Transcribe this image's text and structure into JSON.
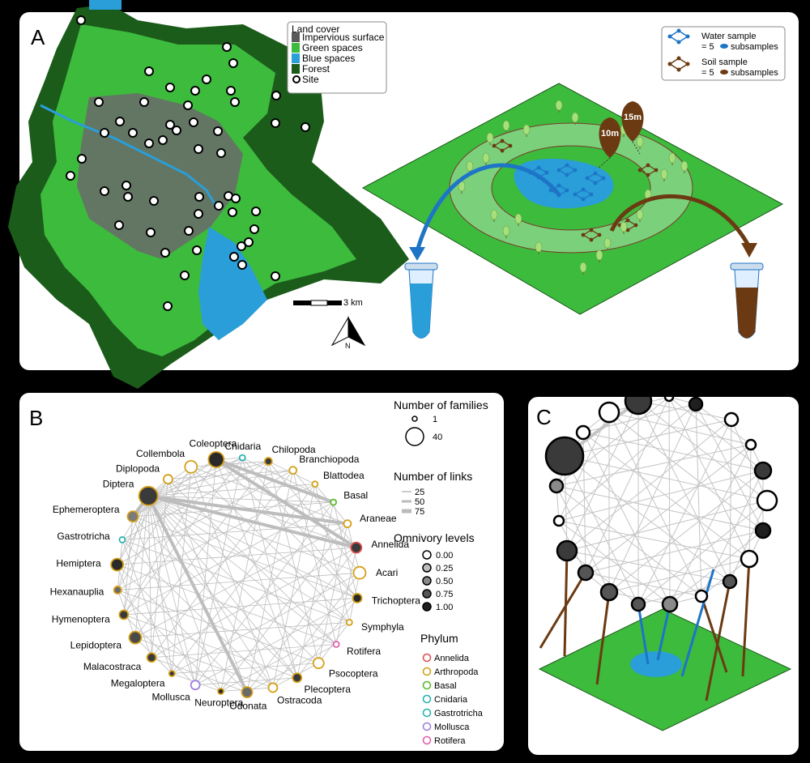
{
  "panel_labels": {
    "a": "A",
    "b": "B",
    "c": "C"
  },
  "map": {
    "legend_title": "Land cover",
    "legend_items": [
      {
        "label": "Impervious surface",
        "color": "#5a5a5a"
      },
      {
        "label": "Green spaces",
        "color": "#3dbb3d"
      },
      {
        "label": "Blue spaces",
        "color": "#2a9ed8"
      },
      {
        "label": "Forest",
        "color": "#1b5c1b"
      },
      {
        "label": "Site",
        "color": "#ffffff"
      }
    ],
    "scale_label": "3 km",
    "north_label": "N"
  },
  "sampling": {
    "water_label": "Water sample",
    "water_sub": "= 5",
    "water_sub2": "subsamples",
    "soil_label": "Soil sample",
    "soil_sub": "= 5",
    "soil_sub2": "subsamples",
    "marker_10": "10m",
    "marker_15": "15m",
    "water_color": "#1e74c6",
    "soil_color": "#6b3a12"
  },
  "network": {
    "nodes": [
      {
        "name": "Cnidaria",
        "color": "#2ab3b0",
        "fill": "#ffffff",
        "size": 2
      },
      {
        "name": "Chilopoda",
        "color": "#d4a017",
        "fill": "#3a3a3a",
        "size": 3
      },
      {
        "name": "Branchiopoda",
        "color": "#d4a017",
        "fill": "#ffffff",
        "size": 3
      },
      {
        "name": "Blattodea",
        "color": "#d4a017",
        "fill": "#ffffff",
        "size": 2
      },
      {
        "name": "Basal",
        "color": "#5cb830",
        "fill": "#ffffff",
        "size": 2
      },
      {
        "name": "Araneae",
        "color": "#d4a017",
        "fill": "#ffffff",
        "size": 3
      },
      {
        "name": "Annelida",
        "color": "#e05050",
        "fill": "#3a3a3a",
        "size": 5
      },
      {
        "name": "Acari",
        "color": "#d4a017",
        "fill": "#ffffff",
        "size": 6
      },
      {
        "name": "Trichoptera",
        "color": "#d4a017",
        "fill": "#2a2a2a",
        "size": 4
      },
      {
        "name": "Symphyla",
        "color": "#d4a017",
        "fill": "#ffffff",
        "size": 2
      },
      {
        "name": "Rotifera",
        "color": "#e060b0",
        "fill": "#ffffff",
        "size": 2
      },
      {
        "name": "Psocoptera",
        "color": "#d4a017",
        "fill": "#ffffff",
        "size": 5
      },
      {
        "name": "Plecoptera",
        "color": "#d4a017",
        "fill": "#3a3a3a",
        "size": 4
      },
      {
        "name": "Ostracoda",
        "color": "#d4a017",
        "fill": "#ffffff",
        "size": 4
      },
      {
        "name": "Odonata",
        "color": "#d4a017",
        "fill": "#6a6a6a",
        "size": 5
      },
      {
        "name": "Neuroptera",
        "color": "#d4a017",
        "fill": "#2a2a2a",
        "size": 2
      },
      {
        "name": "Mollusca",
        "color": "#a080e0",
        "fill": "#ffffff",
        "size": 4
      },
      {
        "name": "Megaloptera",
        "color": "#d4a017",
        "fill": "#3a3a3a",
        "size": 2
      },
      {
        "name": "Malacostraca",
        "color": "#d4a017",
        "fill": "#3a3a3a",
        "size": 4
      },
      {
        "name": "Lepidoptera",
        "color": "#d4a017",
        "fill": "#4a4a4a",
        "size": 6
      },
      {
        "name": "Hymenoptera",
        "color": "#d4a017",
        "fill": "#3a3a3a",
        "size": 4
      },
      {
        "name": "Hexanauplia",
        "color": "#d4a017",
        "fill": "#6a6a6a",
        "size": 3
      },
      {
        "name": "Hemiptera",
        "color": "#d4a017",
        "fill": "#2a2a2a",
        "size": 6
      },
      {
        "name": "Gastrotricha",
        "color": "#2ab3b0",
        "fill": "#ffffff",
        "size": 2
      },
      {
        "name": "Ephemeroptera",
        "color": "#d4a017",
        "fill": "#7a7a7a",
        "size": 5
      },
      {
        "name": "Diptera",
        "color": "#d4a017",
        "fill": "#3a3a3a",
        "size": 10
      },
      {
        "name": "Diplopoda",
        "color": "#d4a017",
        "fill": "#ffffff",
        "size": 4
      },
      {
        "name": "Collembola",
        "color": "#d4a017",
        "fill": "#ffffff",
        "size": 6
      },
      {
        "name": "Coleoptera",
        "color": "#d4a017",
        "fill": "#2a2a2a",
        "size": 8
      }
    ],
    "legend": {
      "families_title": "Number of families",
      "families_values": [
        "1",
        "40"
      ],
      "links_title": "Number of links",
      "links_values": [
        "25",
        "50",
        "75"
      ],
      "omnivory_title": "Omnivory levels",
      "omnivory_values": [
        "0.00",
        "0.25",
        "0.50",
        "0.75",
        "1.00"
      ],
      "omnivory_fills": [
        "#ffffff",
        "#bdbdbd",
        "#8a8a8a",
        "#555555",
        "#1f1f1f"
      ],
      "phylum_title": "Phylum",
      "phylum_values": [
        "Annelida",
        "Arthropoda",
        "Basal",
        "Cnidaria",
        "Gastrotricha",
        "Mollusca",
        "Rotifera"
      ],
      "phylum_colors": [
        "#e05050",
        "#d4a017",
        "#5cb830",
        "#2ab3b0",
        "#2ab3b0",
        "#a080e0",
        "#e060b0"
      ]
    }
  }
}
